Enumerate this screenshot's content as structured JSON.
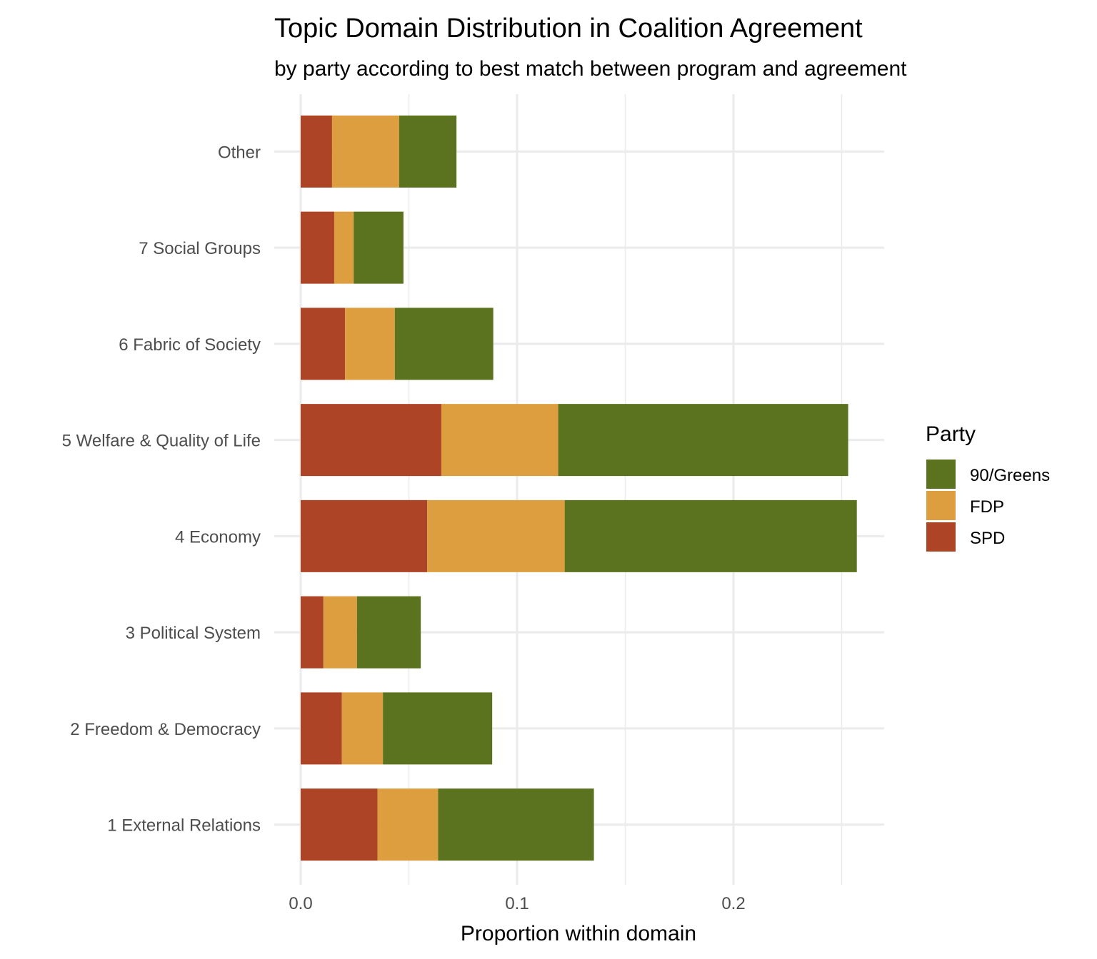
{
  "chart_data": {
    "type": "bar",
    "orientation": "horizontal",
    "stacked": true,
    "title": "Topic Domain Distribution in Coalition Agreement",
    "subtitle": "by party according to best match between program and agreement",
    "xlabel": "Proportion within domain",
    "ylabel": "",
    "xlim": [
      0,
      0.27
    ],
    "xticks": [
      {
        "value": 0.0,
        "label": "0.0"
      },
      {
        "value": 0.1,
        "label": "0.1"
      },
      {
        "value": 0.2,
        "label": "0.2"
      }
    ],
    "grid": true,
    "categories": [
      "Other",
      "7 Social Groups",
      "6 Fabric of Society",
      "5 Welfare & Quality of Life",
      "4 Economy",
      "3 Political System",
      "2 Freedom & Democracy",
      "1 External Relations"
    ],
    "series": [
      {
        "name": "SPD",
        "color": "#ae4426",
        "values": [
          0.0145,
          0.0155,
          0.0205,
          0.065,
          0.0585,
          0.0105,
          0.019,
          0.0355
        ]
      },
      {
        "name": "FDP",
        "color": "#dc9e3f",
        "values": [
          0.031,
          0.009,
          0.023,
          0.054,
          0.0635,
          0.0155,
          0.019,
          0.028
        ]
      },
      {
        "name": "90/Greens",
        "color": "#5b731e",
        "values": [
          0.0265,
          0.023,
          0.0455,
          0.134,
          0.135,
          0.0295,
          0.0505,
          0.072
        ]
      }
    ],
    "legend": {
      "title": "Party",
      "position": "right",
      "order": [
        "90/Greens",
        "FDP",
        "SPD"
      ]
    }
  }
}
